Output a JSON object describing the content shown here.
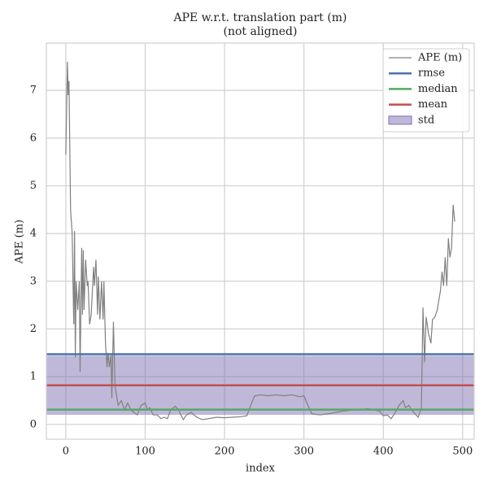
{
  "chart_data": {
    "type": "line",
    "title": "APE w.r.t. translation part (m)",
    "subtitle": "(not aligned)",
    "x_label": "index",
    "y_label": "APE (m)",
    "xlim": [
      -24.5,
      514.5
    ],
    "ylim": [
      -0.31,
      7.99
    ],
    "xticks": [
      0,
      100,
      200,
      300,
      400,
      500
    ],
    "yticks": [
      0,
      1,
      2,
      3,
      4,
      5,
      6,
      7
    ],
    "grid": true,
    "legend": "upper right",
    "series": [
      {
        "name": "APE (m)",
        "color": "#808080",
        "x": [
          0,
          2,
          3,
          4,
          6,
          8,
          10,
          11,
          12,
          13,
          15,
          17,
          18,
          20,
          21,
          22,
          23,
          25,
          27,
          28,
          30,
          32,
          35,
          36,
          38,
          40,
          41,
          43,
          45,
          47,
          48,
          50,
          52,
          53,
          55,
          57,
          58,
          60,
          62,
          64,
          66,
          70,
          74,
          78,
          82,
          86,
          90,
          95,
          100,
          103,
          106,
          110,
          115,
          120,
          124,
          128,
          132,
          138,
          142,
          148,
          152,
          158,
          165,
          172,
          180,
          190,
          200,
          210,
          220,
          228,
          233,
          238,
          245,
          255,
          265,
          275,
          285,
          295,
          300,
          305,
          310,
          320,
          330,
          340,
          350,
          360,
          370,
          380,
          390,
          395,
          400,
          405,
          410,
          415,
          420,
          425,
          428,
          432,
          436,
          440,
          444,
          448,
          450,
          452,
          454,
          457,
          460,
          462,
          465,
          468,
          470,
          472,
          474,
          476,
          478,
          480,
          482,
          484,
          486,
          488,
          490
        ],
        "values": [
          5.65,
          7.6,
          6.9,
          7.2,
          4.5,
          4.0,
          2.1,
          4.05,
          1.4,
          3.0,
          2.4,
          3.0,
          1.1,
          3.7,
          2.3,
          3.65,
          2.4,
          3.45,
          2.9,
          3.0,
          2.1,
          2.3,
          3.3,
          2.9,
          3.45,
          2.3,
          3.1,
          2.2,
          3.0,
          2.2,
          3.0,
          1.7,
          1.2,
          1.5,
          1.2,
          1.45,
          0.55,
          2.15,
          0.8,
          0.6,
          0.4,
          0.5,
          0.3,
          0.45,
          0.3,
          0.25,
          0.2,
          0.4,
          0.45,
          0.3,
          0.35,
          0.2,
          0.2,
          0.12,
          0.15,
          0.12,
          0.3,
          0.38,
          0.3,
          0.1,
          0.2,
          0.25,
          0.15,
          0.1,
          0.12,
          0.15,
          0.14,
          0.15,
          0.16,
          0.18,
          0.4,
          0.6,
          0.62,
          0.6,
          0.62,
          0.6,
          0.62,
          0.58,
          0.6,
          0.4,
          0.22,
          0.2,
          0.22,
          0.25,
          0.28,
          0.3,
          0.3,
          0.33,
          0.3,
          0.28,
          0.18,
          0.2,
          0.12,
          0.25,
          0.4,
          0.5,
          0.35,
          0.4,
          0.3,
          0.22,
          0.15,
          0.35,
          2.45,
          1.3,
          2.25,
          1.9,
          1.7,
          2.2,
          2.25,
          2.4,
          2.6,
          2.8,
          3.2,
          2.9,
          3.5,
          2.9,
          3.9,
          3.5,
          3.7,
          4.6,
          4.25
        ]
      }
    ],
    "reference_lines": [
      {
        "name": "rmse",
        "color": "#4c72b0",
        "value": 1.47
      },
      {
        "name": "median",
        "color": "#55a868",
        "value": 0.31
      },
      {
        "name": "mean",
        "color": "#c44e52",
        "value": 0.82
      }
    ],
    "std_band": {
      "name": "std",
      "color": "#8172b2",
      "value": 0.62
    }
  }
}
